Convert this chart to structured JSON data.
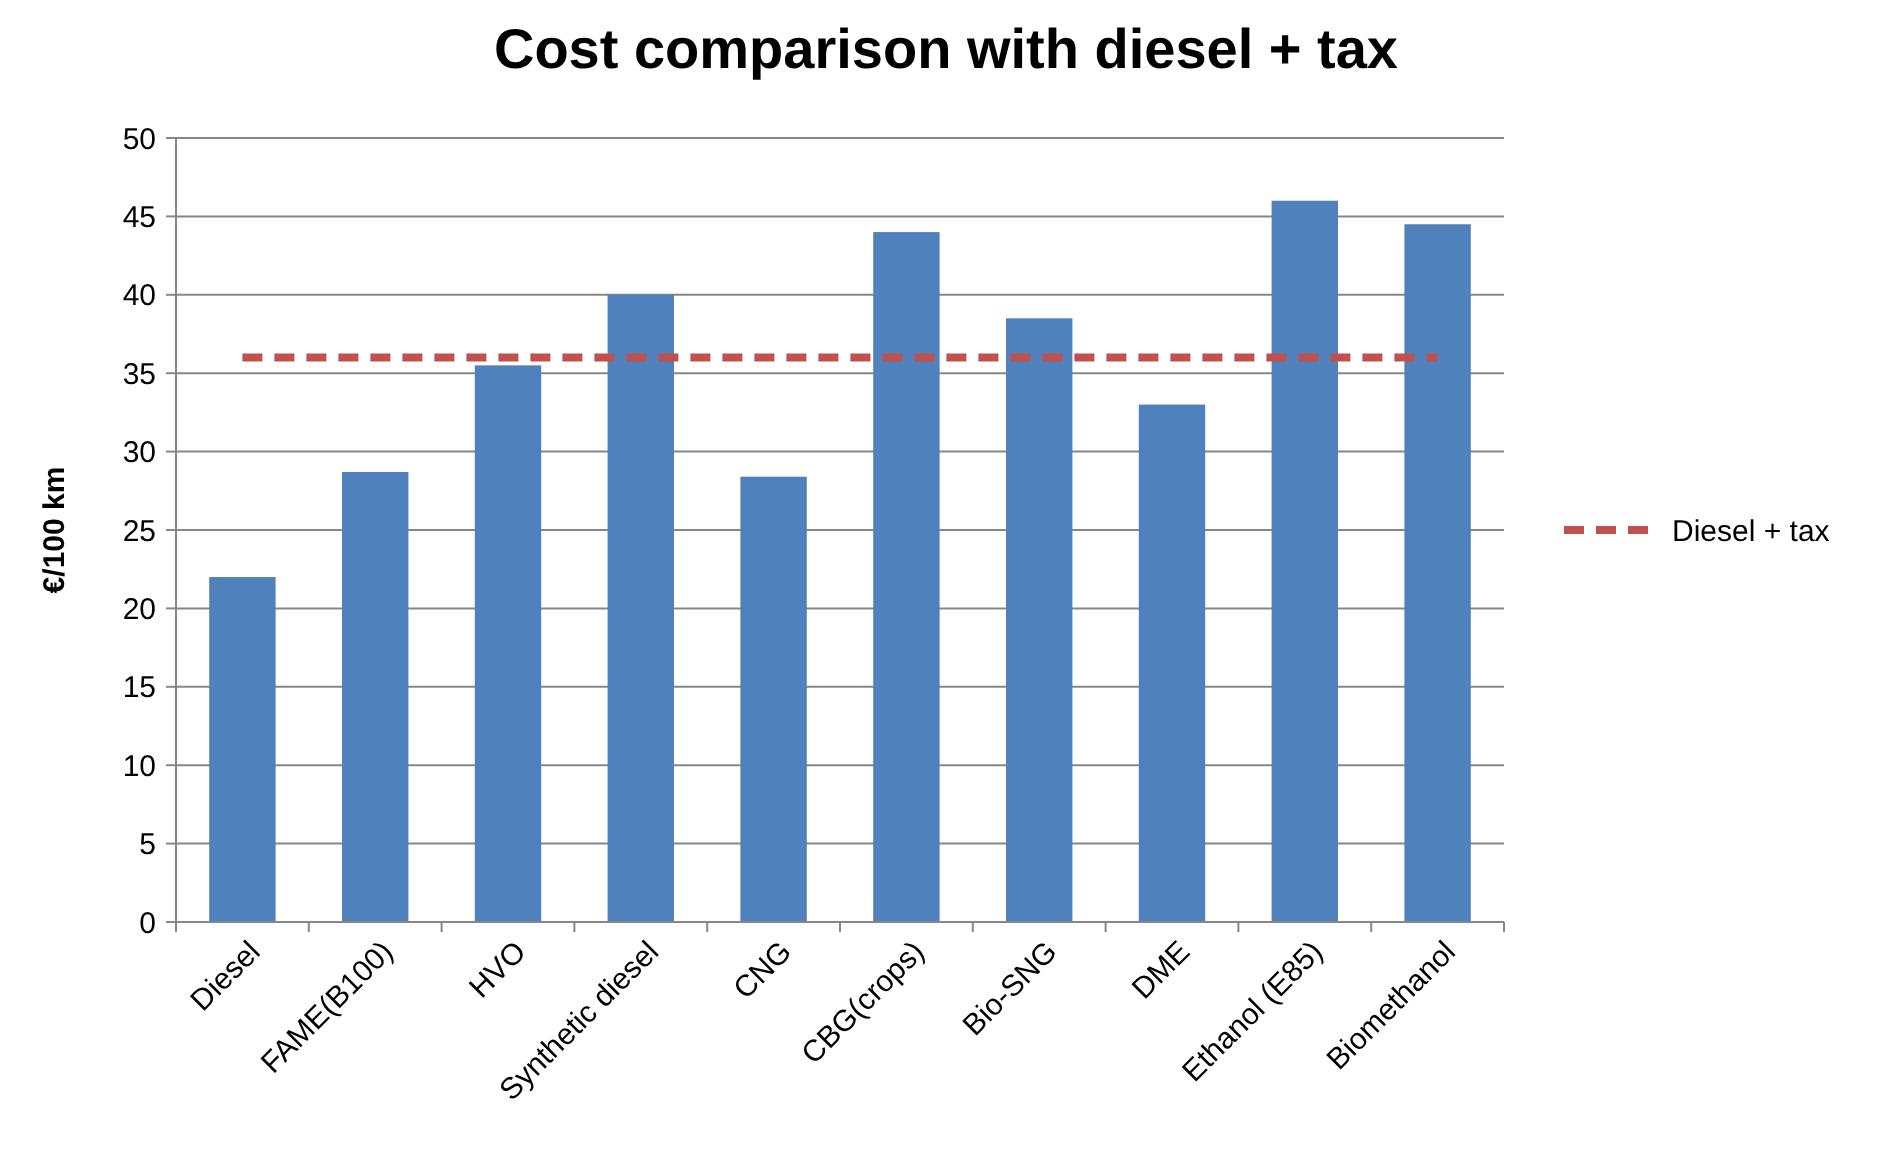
{
  "chart_data": {
    "type": "bar",
    "title": "Cost comparison with diesel + tax",
    "ylabel": "€/100 km",
    "categories": [
      "Diesel",
      "FAME(B100)",
      "HVO",
      "Synthetic diesel",
      "CNG",
      "CBG(crops)",
      "Bio-SNG",
      "DME",
      "Ethanol (E85)",
      "Biomethanol"
    ],
    "series": [
      {
        "color": "#4f81bd",
        "values": [
          22,
          28.7,
          35.5,
          40,
          28.4,
          44,
          38.5,
          33,
          46,
          44.5
        ]
      },
      {
        "type": "line",
        "name": "Diesel + tax",
        "color": "#c0504d",
        "line_style": "dashed",
        "values": [
          36,
          36,
          36,
          36,
          36,
          36,
          36,
          36,
          36,
          36
        ]
      }
    ],
    "ylim": [
      0,
      50
    ],
    "yticks": [
      0,
      5,
      10,
      15,
      20,
      25,
      30,
      35,
      40,
      45,
      50
    ],
    "grid": "y",
    "legend": "right"
  }
}
